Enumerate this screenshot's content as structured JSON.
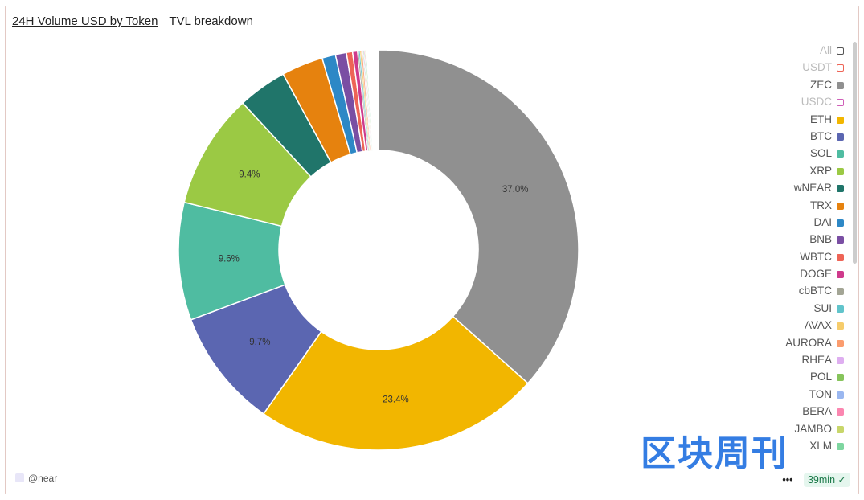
{
  "tabs": [
    {
      "label": "24H Volume USD by Token",
      "active": true
    },
    {
      "label": "TVL breakdown",
      "active": false
    }
  ],
  "footer": {
    "source": "@near",
    "more": "•••",
    "freshness": "39min"
  },
  "watermark": "区块周刊",
  "chart_data": {
    "type": "pie",
    "donut": true,
    "start": "top, clockwise",
    "legend_position": "right",
    "slices": [
      {
        "name": "ZEC",
        "value": 37.0,
        "label": "37.0%",
        "color": "#909090"
      },
      {
        "name": "ETH",
        "value": 23.4,
        "label": "23.4%",
        "color": "#f2b600"
      },
      {
        "name": "BTC",
        "value": 9.7,
        "label": "9.7%",
        "color": "#5b66b1"
      },
      {
        "name": "SOL",
        "value": 9.6,
        "label": "9.6%",
        "color": "#4fbca1"
      },
      {
        "name": "XRP",
        "value": 9.4,
        "label": "9.4%",
        "color": "#9bc944"
      },
      {
        "name": "wNEAR",
        "value": 4.0,
        "label": "",
        "color": "#20756a"
      },
      {
        "name": "TRX",
        "value": 3.4,
        "label": "",
        "color": "#e6820e"
      },
      {
        "name": "DAI",
        "value": 1.1,
        "label": "",
        "color": "#2d88c6"
      },
      {
        "name": "BNB",
        "value": 0.9,
        "label": "",
        "color": "#7a4ea3"
      },
      {
        "name": "WBTC",
        "value": 0.5,
        "label": "",
        "color": "#ee6456"
      },
      {
        "name": "DOGE",
        "value": 0.4,
        "label": "",
        "color": "#cf3a8c"
      },
      {
        "name": "cbBTC",
        "value": 0.1,
        "label": "",
        "color": "#a3a595"
      },
      {
        "name": "SUI",
        "value": 0.1,
        "label": "",
        "color": "#61c4cb"
      },
      {
        "name": "AVAX",
        "value": 0.1,
        "label": "",
        "color": "#f6cc6b"
      },
      {
        "name": "AURORA",
        "value": 0.1,
        "label": "",
        "color": "#fb9c6e"
      },
      {
        "name": "RHEA",
        "value": 0.05,
        "label": "",
        "color": "#deaef0"
      },
      {
        "name": "POL",
        "value": 0.05,
        "label": "",
        "color": "#86c45b"
      },
      {
        "name": "TON",
        "value": 0.05,
        "label": "",
        "color": "#9ab7f0"
      },
      {
        "name": "BERA",
        "value": 0.05,
        "label": "",
        "color": "#fb86b0"
      },
      {
        "name": "JAMBO",
        "value": 0.05,
        "label": "",
        "color": "#c8d66a"
      },
      {
        "name": "XLM",
        "value": 0.05,
        "label": "",
        "color": "#7ed6a0"
      }
    ],
    "legend": [
      {
        "name": "All",
        "color": "#555555",
        "enabled": false,
        "outline": true
      },
      {
        "name": "USDT",
        "color": "#ee6456",
        "enabled": false,
        "outline": true
      },
      {
        "name": "ZEC",
        "color": "#909090",
        "enabled": true
      },
      {
        "name": "USDC",
        "color": "#cf5fb8",
        "enabled": false,
        "outline": true
      },
      {
        "name": "ETH",
        "color": "#f2b600",
        "enabled": true
      },
      {
        "name": "BTC",
        "color": "#5b66b1",
        "enabled": true
      },
      {
        "name": "SOL",
        "color": "#4fbca1",
        "enabled": true
      },
      {
        "name": "XRP",
        "color": "#9bc944",
        "enabled": true
      },
      {
        "name": "wNEAR",
        "color": "#20756a",
        "enabled": true
      },
      {
        "name": "TRX",
        "color": "#e6820e",
        "enabled": true
      },
      {
        "name": "DAI",
        "color": "#2d88c6",
        "enabled": true
      },
      {
        "name": "BNB",
        "color": "#7a4ea3",
        "enabled": true
      },
      {
        "name": "WBTC",
        "color": "#ee6456",
        "enabled": true
      },
      {
        "name": "DOGE",
        "color": "#cf3a8c",
        "enabled": true
      },
      {
        "name": "cbBTC",
        "color": "#a3a595",
        "enabled": true
      },
      {
        "name": "SUI",
        "color": "#61c4cb",
        "enabled": true
      },
      {
        "name": "AVAX",
        "color": "#f6cc6b",
        "enabled": true
      },
      {
        "name": "AURORA",
        "color": "#fb9c6e",
        "enabled": true
      },
      {
        "name": "RHEA",
        "color": "#deaef0",
        "enabled": true
      },
      {
        "name": "POL",
        "color": "#86c45b",
        "enabled": true
      },
      {
        "name": "TON",
        "color": "#9ab7f0",
        "enabled": true
      },
      {
        "name": "BERA",
        "color": "#fb86b0",
        "enabled": true
      },
      {
        "name": "JAMBO",
        "color": "#c8d66a",
        "enabled": true
      },
      {
        "name": "XLM",
        "color": "#7ed6a0",
        "enabled": true
      }
    ]
  }
}
